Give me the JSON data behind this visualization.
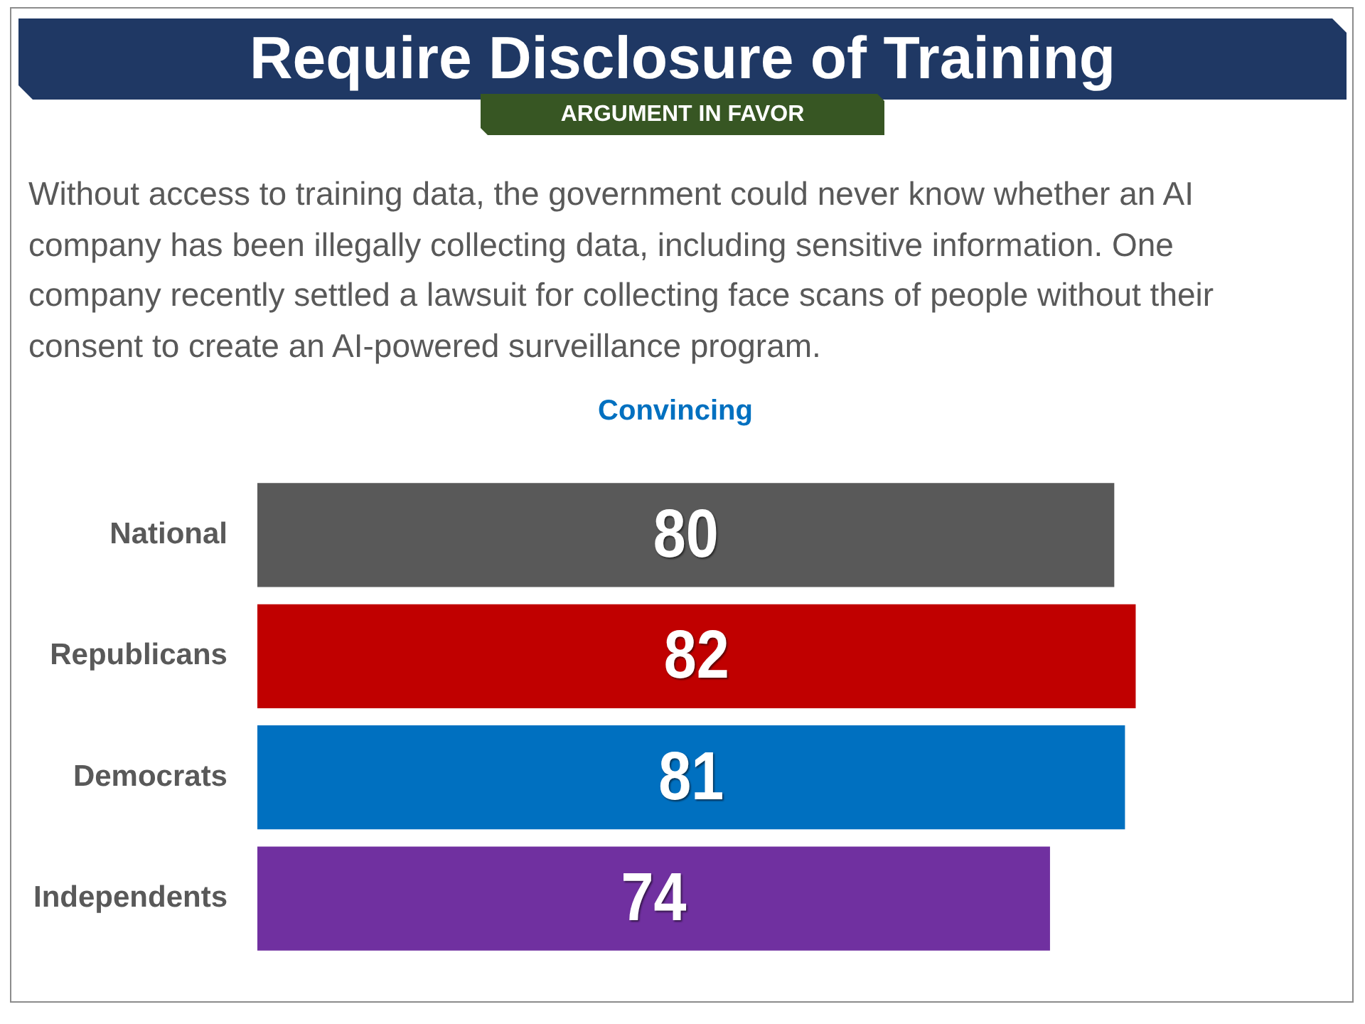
{
  "chart_data": {
    "type": "bar",
    "orientation": "horizontal",
    "title": "Require Disclosure of Training",
    "subtitle": "ARGUMENT IN FAVOR",
    "annotations": [
      "Without access to training data, the government could never know whether an AI company has been illegally collecting data, including sensitive information. One company recently settled a lawsuit for collecting face scans of people without their consent to create an AI-powered surveillance program."
    ],
    "xlabel": "Convincing",
    "categories": [
      "National",
      "Republicans",
      "Democrats",
      "Independents"
    ],
    "values": [
      80,
      82,
      81,
      74
    ],
    "colors": [
      "#595959",
      "#c00000",
      "#0070c0",
      "#7030a0"
    ],
    "data_labels": true,
    "tick_labels": "y"
  }
}
